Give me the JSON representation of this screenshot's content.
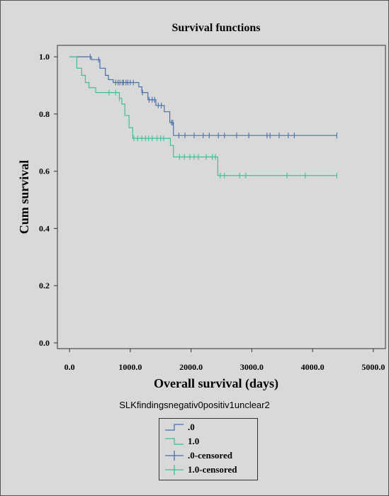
{
  "chart_data": {
    "type": "line",
    "title": "Survival functions",
    "xlabel": "Overall survival (days)",
    "ylabel": "Cum survival",
    "xlim": [
      -200,
      5200
    ],
    "ylim": [
      -0.02,
      1.04
    ],
    "x_ticks": [
      0,
      1000,
      2000,
      3000,
      4000,
      5000
    ],
    "x_tick_labels": [
      "0.0",
      "1000.0",
      "2000.0",
      "3000.0",
      "4000.0",
      "5000.0"
    ],
    "y_ticks": [
      0,
      0.2,
      0.4,
      0.6,
      0.8,
      1.0
    ],
    "y_tick_labels": [
      "0.0",
      "0.2",
      "0.4",
      "0.6",
      "0.8",
      "1.0"
    ],
    "grid": false,
    "legend_title": "SLKfindingsnegativ0positiv1unclear2",
    "legend_position": "bottom-center",
    "series": [
      {
        "name": ".0",
        "color": "#4a6fa8",
        "steps": [
          [
            0,
            1.0
          ],
          [
            360,
            0.99
          ],
          [
            500,
            0.96
          ],
          [
            590,
            0.935
          ],
          [
            640,
            0.92
          ],
          [
            720,
            0.91
          ],
          [
            1140,
            0.895
          ],
          [
            1190,
            0.875
          ],
          [
            1290,
            0.85
          ],
          [
            1420,
            0.83
          ],
          [
            1560,
            0.808
          ],
          [
            1650,
            0.77
          ],
          [
            1710,
            0.725
          ],
          [
            4400,
            0.725
          ]
        ],
        "censored": [
          340,
          480,
          760,
          800,
          830,
          870,
          890,
          930,
          960,
          1000,
          1050,
          1200,
          1310,
          1360,
          1400,
          1460,
          1510,
          1680,
          1700,
          1800,
          1900,
          2050,
          2200,
          2300,
          2450,
          2550,
          2750,
          2950,
          3250,
          3300,
          3450,
          3600,
          3700,
          4400
        ],
        "censored_label": ".0-censored"
      },
      {
        "name": "1.0",
        "color": "#3fbf9a",
        "steps": [
          [
            0,
            1.0
          ],
          [
            120,
            0.96
          ],
          [
            200,
            0.935
          ],
          [
            260,
            0.91
          ],
          [
            320,
            0.892
          ],
          [
            430,
            0.875
          ],
          [
            820,
            0.855
          ],
          [
            860,
            0.835
          ],
          [
            910,
            0.795
          ],
          [
            980,
            0.752
          ],
          [
            1040,
            0.715
          ],
          [
            1660,
            0.69
          ],
          [
            1710,
            0.65
          ],
          [
            2440,
            0.585
          ],
          [
            4400,
            0.585
          ]
        ],
        "censored": [
          650,
          760,
          820,
          1060,
          1120,
          1190,
          1250,
          1300,
          1360,
          1440,
          1500,
          1550,
          1810,
          1890,
          1980,
          2050,
          2120,
          2250,
          2350,
          2400,
          2480,
          2550,
          2800,
          2900,
          3580,
          3880,
          4400
        ],
        "censored_label": "1.0-censored"
      }
    ]
  }
}
